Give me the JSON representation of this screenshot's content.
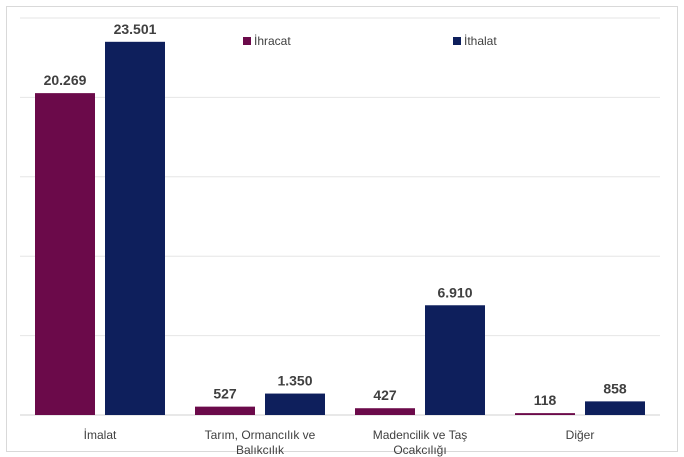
{
  "chart_data": {
    "type": "bar",
    "categories": [
      [
        "İmalat"
      ],
      [
        "Tarım, Ormancılık ve",
        "Balıkcılık"
      ],
      [
        "Madencilik ve Taş",
        "Ocakcılığı"
      ],
      [
        "Diğer"
      ]
    ],
    "series": [
      {
        "name": "İhracat",
        "color": "#6b0a4a",
        "values": [
          20269,
          527,
          427,
          118
        ],
        "labels": [
          "20.269",
          "527",
          "427",
          "118"
        ]
      },
      {
        "name": "İthalat",
        "color": "#0e1f5c",
        "values": [
          23501,
          1350,
          6910,
          858
        ],
        "labels": [
          "23.501",
          "1.350",
          "6.910",
          "858"
        ]
      }
    ],
    "ylim": [
      0,
      25000
    ],
    "grid": true,
    "legend": "top-center"
  }
}
